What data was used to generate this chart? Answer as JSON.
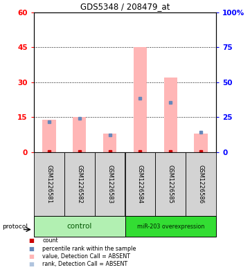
{
  "title": "GDS5348 / 208479_at",
  "samples": [
    "GSM1226581",
    "GSM1226582",
    "GSM1226583",
    "GSM1226584",
    "GSM1226585",
    "GSM1226586"
  ],
  "pink_bar_values": [
    14.0,
    15.0,
    8.0,
    45.0,
    32.0,
    8.0
  ],
  "blue_mark_values": [
    13.0,
    14.5,
    7.5,
    23.0,
    21.5,
    8.5
  ],
  "red_count_values": [
    0.4,
    0.4,
    0.4,
    0.4,
    0.4,
    0.4
  ],
  "ylim_left": [
    0,
    60
  ],
  "ylim_right": [
    0,
    100
  ],
  "yticks_left": [
    0,
    15,
    30,
    45,
    60
  ],
  "ytick_labels_left": [
    "0",
    "15",
    "30",
    "45",
    "60"
  ],
  "yticks_right": [
    0,
    25,
    50,
    75,
    100
  ],
  "ytick_labels_right": [
    "0",
    "25",
    "50",
    "75",
    "100%"
  ],
  "dotted_lines": [
    15,
    30,
    45
  ],
  "ctrl_color": "#b2f0b2",
  "mirna_color": "#33dd33",
  "bg_color": "#d3d3d3",
  "pink_color": "#ffb6b6",
  "blue_color": "#6688bb",
  "red_color": "#cc0000",
  "bar_width": 0.45,
  "legend_items": [
    {
      "color": "#cc0000",
      "label": "count"
    },
    {
      "color": "#6688bb",
      "label": "percentile rank within the sample"
    },
    {
      "color": "#ffb6b6",
      "label": "value, Detection Call = ABSENT"
    },
    {
      "color": "#b0c4de",
      "label": "rank, Detection Call = ABSENT"
    }
  ]
}
